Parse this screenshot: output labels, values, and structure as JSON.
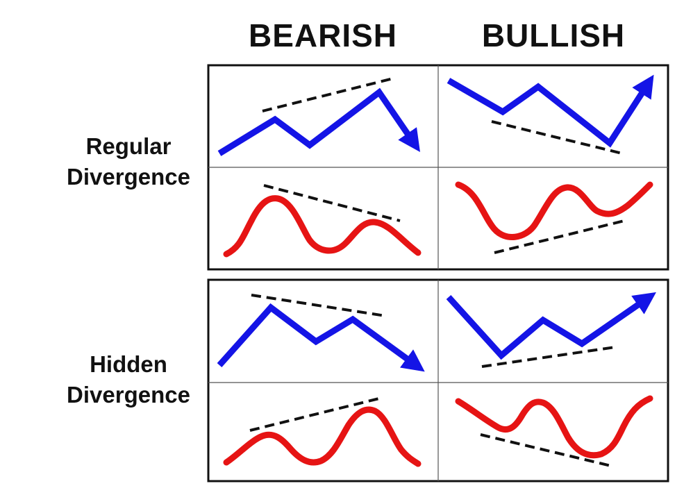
{
  "columns": {
    "bearish": "BEARISH",
    "bullish": "BULLISH"
  },
  "rows": {
    "regular": {
      "line1": "Regular",
      "line2": "Divergence"
    },
    "hidden": {
      "line1": "Hidden",
      "line2": "Divergence"
    }
  },
  "colors": {
    "price_line": "#1414e6",
    "indicator_line": "#e61414",
    "trendline": "#111111",
    "frame": "#111111"
  },
  "cells": [
    {
      "name": "regular-bearish-price",
      "series": "price"
    },
    {
      "name": "regular-bullish-price",
      "series": "price"
    },
    {
      "name": "regular-bearish-indicator",
      "series": "indicator"
    },
    {
      "name": "regular-bullish-indicator",
      "series": "indicator"
    },
    {
      "name": "hidden-bearish-price",
      "series": "price"
    },
    {
      "name": "hidden-bullish-price",
      "series": "price"
    },
    {
      "name": "hidden-bearish-indicator",
      "series": "indicator"
    },
    {
      "name": "hidden-bullish-indicator",
      "series": "indicator"
    }
  ]
}
